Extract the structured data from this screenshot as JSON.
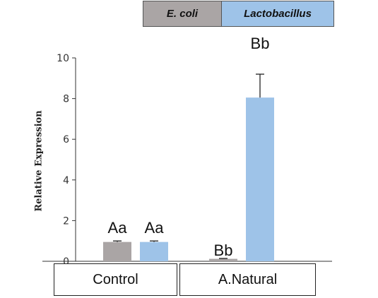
{
  "chart_data": {
    "type": "bar",
    "categories": [
      "Control",
      "A.Natural"
    ],
    "series": [
      {
        "name": "E. coli",
        "values": [
          0.95,
          0.12
        ],
        "errors": [
          0.05,
          0.02
        ],
        "color": "#aaa5a5"
      },
      {
        "name": "Lactobacillus",
        "values": [
          0.95,
          8.05
        ],
        "errors": [
          0.05,
          1.15
        ],
        "color": "#9ec3e8"
      }
    ],
    "annotations": [
      [
        "Aa",
        "Aa"
      ],
      [
        "Bb",
        "Bb"
      ]
    ],
    "ylabel": "Relative Expression",
    "ylim": [
      0,
      10
    ],
    "yticks": [
      "0",
      "2",
      "4",
      "6",
      "8",
      "10"
    ],
    "legend": "top"
  }
}
